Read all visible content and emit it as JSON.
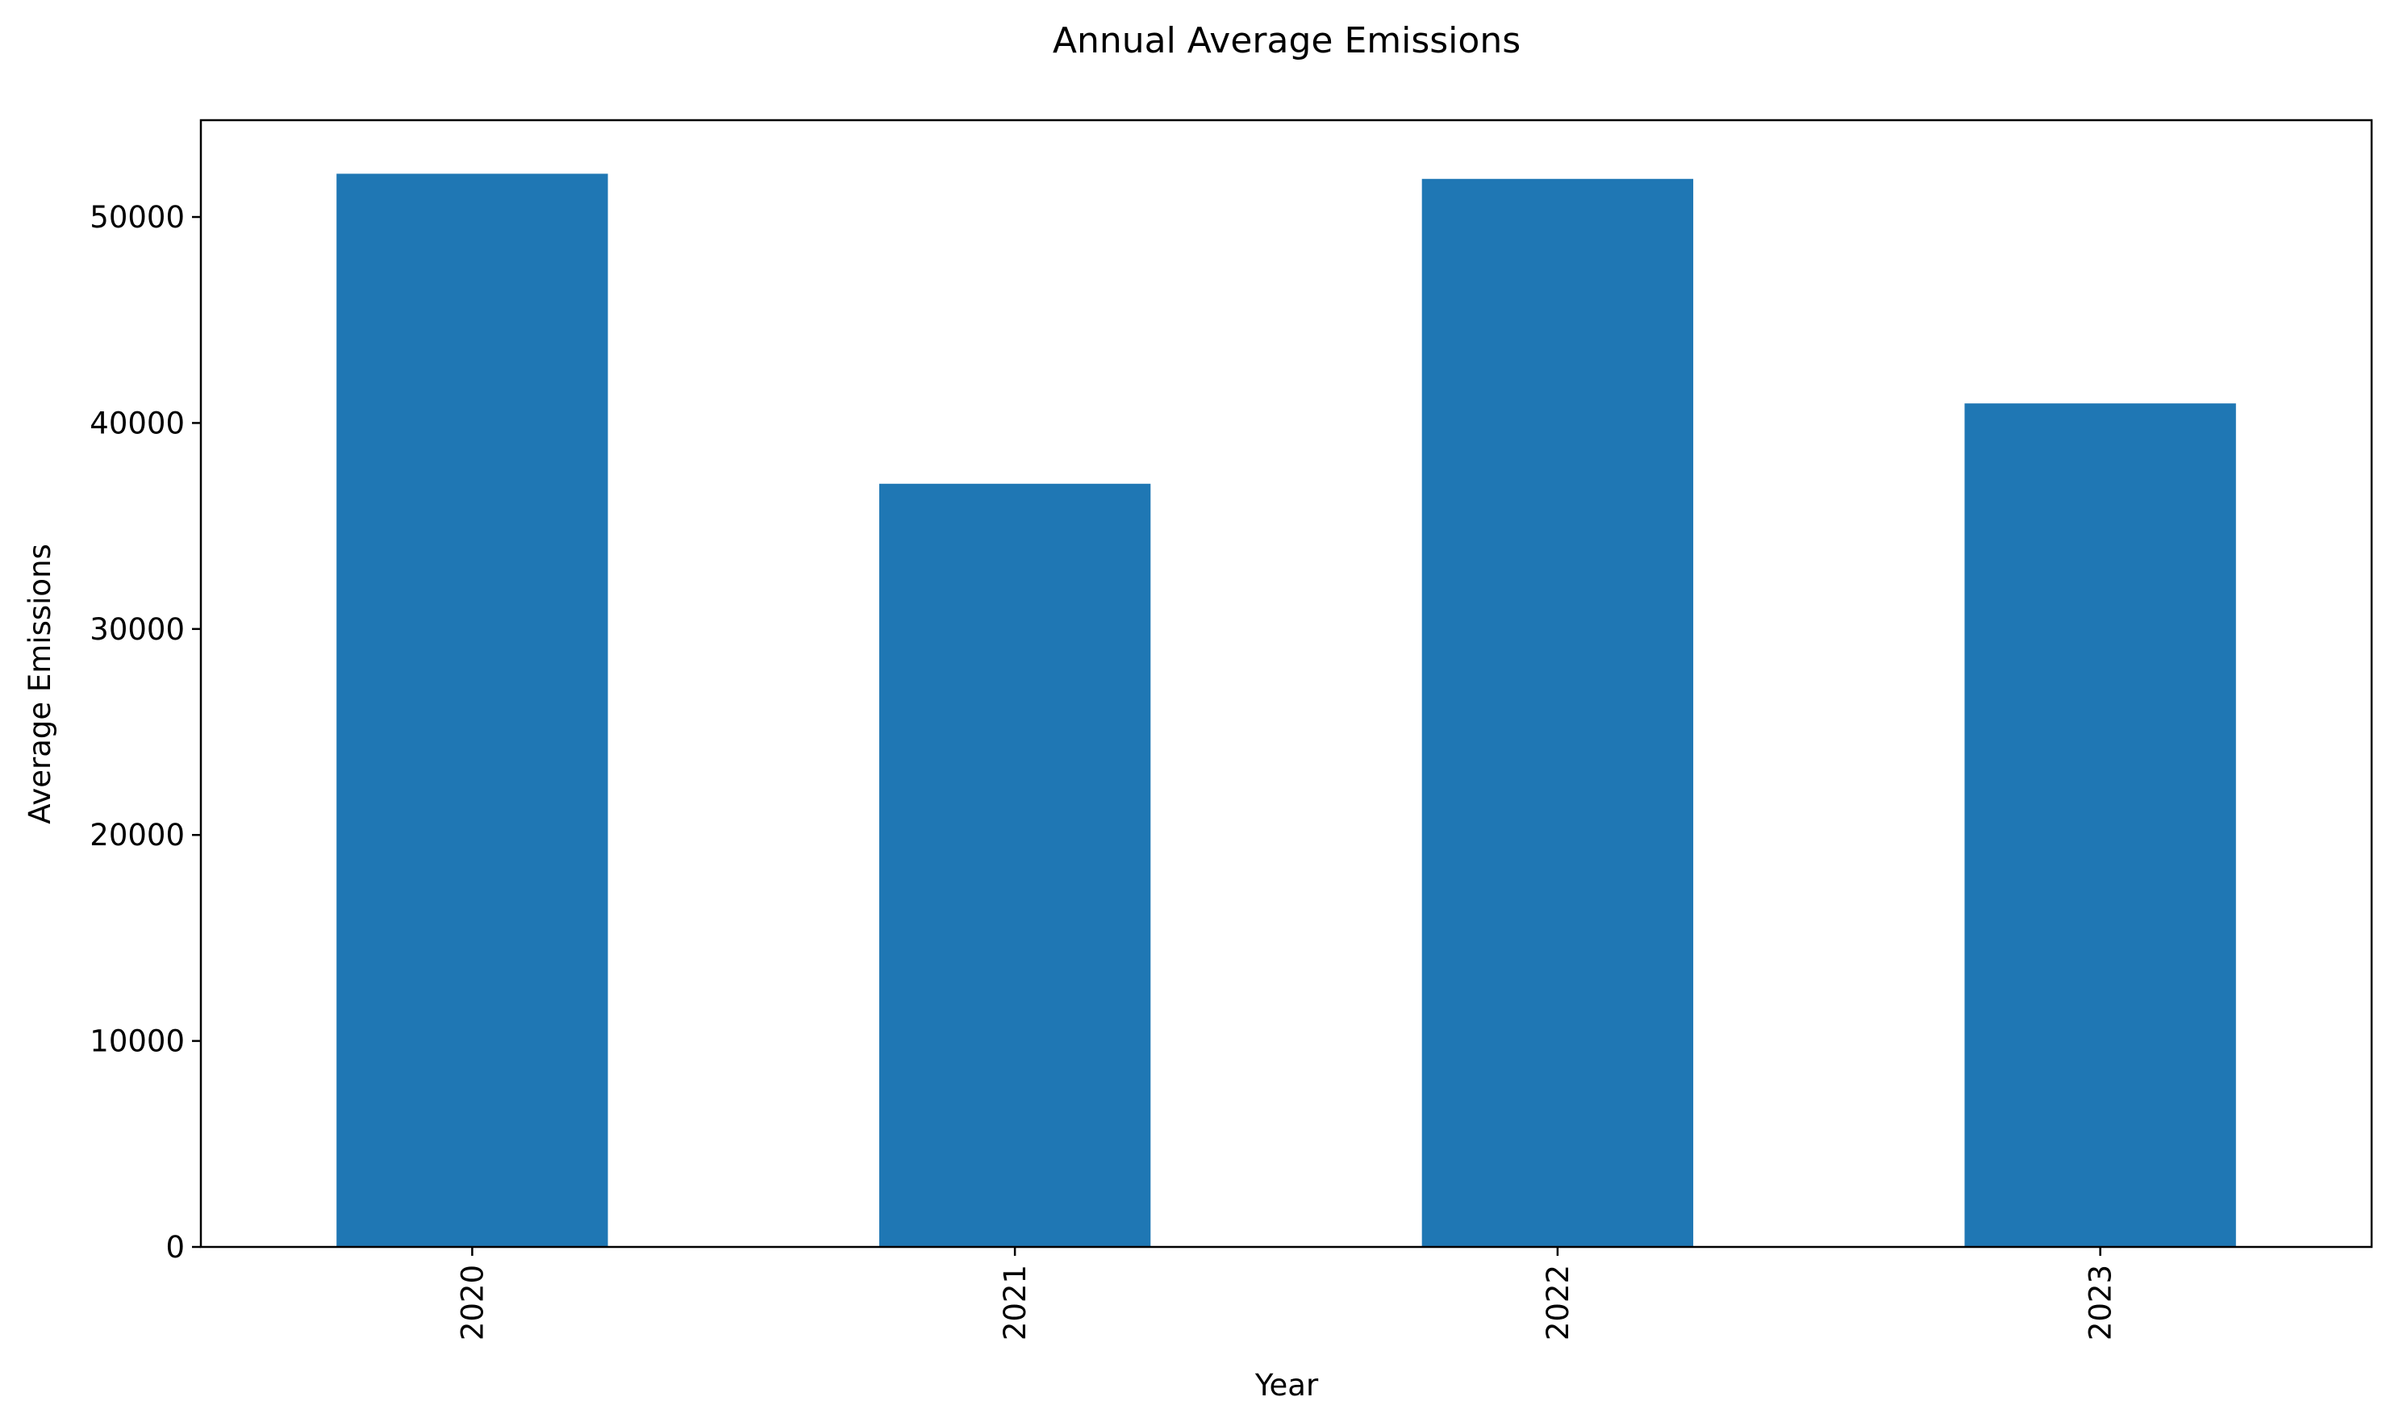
{
  "chart_data": {
    "type": "bar",
    "title": "Annual Average Emissions",
    "xlabel": "Year",
    "ylabel": "Average Emissions",
    "categories": [
      "2020",
      "2021",
      "2022",
      "2023"
    ],
    "values": [
      52100,
      37050,
      51850,
      40950
    ],
    "ylim": [
      0,
      54700
    ],
    "yticks": [
      0,
      10000,
      20000,
      30000,
      40000,
      50000
    ],
    "ytick_labels": [
      "0",
      "10000",
      "20000",
      "30000",
      "40000",
      "50000"
    ],
    "grid": false,
    "legend": "none",
    "bar_color": "#1f77b4"
  }
}
